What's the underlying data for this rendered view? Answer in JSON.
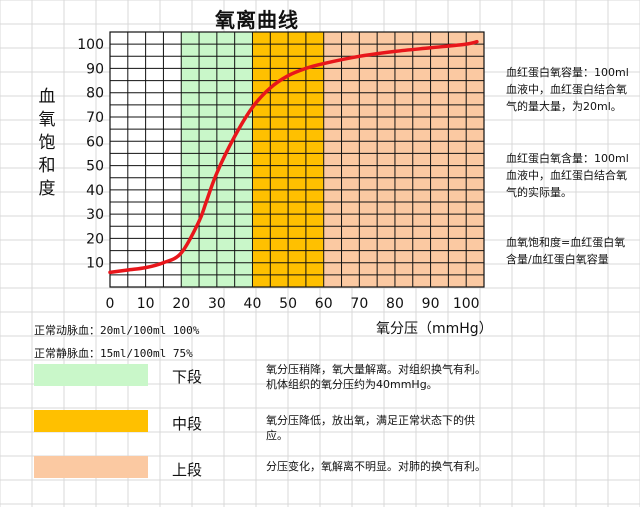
{
  "title": "氧离曲线",
  "y_axis_label": "血氧饱和度",
  "x_axis_label": "氧分压（mmHg）",
  "colors": {
    "low_segment": "#c9f7c9",
    "mid_segment": "#ffc000",
    "high_segment": "#fbc9a2",
    "curve": "#e8161b",
    "grid": "#111111",
    "sheet_grid": "#d9d9d9"
  },
  "notes": {
    "capacity": "血红蛋白氧容量：100ml血液中，血红蛋白结合氧气的量大量，为20ml。",
    "content": "血红蛋白氧含量：100ml血液中，血红蛋白结合氧气的实际量。",
    "saturation": "血氧饱和度=血红蛋白氧含量/血红蛋白氧容量"
  },
  "normal_values": {
    "arterial": "正常动脉血：20ml/100ml 100%",
    "venous": "正常静脉血：15ml/100ml 75%"
  },
  "legend": [
    {
      "label": "下段",
      "color": "#c9f7c9",
      "description": "氧分压稍降，氧大量解离。对组织换气有利。机体组织的氧分压约为40mmHg。"
    },
    {
      "label": "中段",
      "color": "#ffc000",
      "description": "氧分压降低，放出氧，满足正常状态下的供应。"
    },
    {
      "label": "上段",
      "color": "#fbc9a2",
      "description": "分压变化，氧解离不明显。对肺的换气有利。"
    }
  ],
  "chart_data": {
    "type": "line",
    "title": "氧离曲线",
    "xlabel": "氧分压（mmHg）",
    "ylabel": "血氧饱和度",
    "xlim": [
      0,
      105
    ],
    "ylim": [
      0,
      105
    ],
    "x_ticks": [
      0,
      10,
      20,
      30,
      40,
      50,
      60,
      70,
      80,
      90,
      100
    ],
    "y_ticks": [
      10,
      20,
      30,
      40,
      50,
      60,
      70,
      80,
      90,
      100
    ],
    "grid": true,
    "bands": [
      {
        "segment": "下段",
        "x_range": [
          20,
          40
        ],
        "color": "#c9f7c9"
      },
      {
        "segment": "中段",
        "x_range": [
          40,
          60
        ],
        "color": "#ffc000"
      },
      {
        "segment": "上段",
        "x_range": [
          60,
          105
        ],
        "color": "#fbc9a2"
      }
    ],
    "series": [
      {
        "color": "#e8161b",
        "points": [
          [
            0,
            6
          ],
          [
            5,
            7
          ],
          [
            10,
            8
          ],
          [
            15,
            10
          ],
          [
            20,
            14
          ],
          [
            25,
            27
          ],
          [
            27,
            35
          ],
          [
            30,
            47
          ],
          [
            35,
            62
          ],
          [
            40,
            74
          ],
          [
            45,
            82
          ],
          [
            50,
            87
          ],
          [
            55,
            90
          ],
          [
            60,
            92
          ],
          [
            70,
            95
          ],
          [
            80,
            97
          ],
          [
            90,
            98.5
          ],
          [
            100,
            100
          ],
          [
            103,
            101
          ]
        ]
      }
    ]
  }
}
